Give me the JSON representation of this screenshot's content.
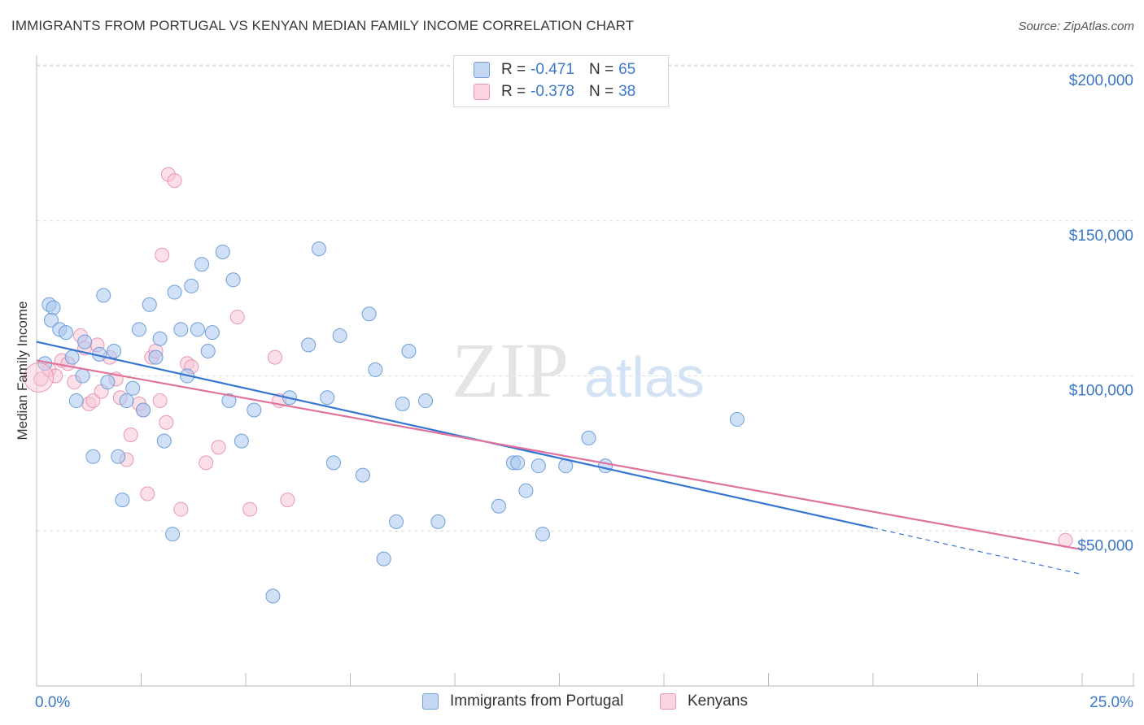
{
  "header": {
    "title": "IMMIGRANTS FROM PORTUGAL VS KENYAN MEDIAN FAMILY INCOME CORRELATION CHART",
    "source": "Source: ZipAtlas.com"
  },
  "watermark": {
    "zip": "ZIP",
    "atlas": "atlas"
  },
  "legend": {
    "rows": [
      {
        "r_label": "R =",
        "r_value": "-0.471",
        "n_label": "N =",
        "n_value": "65"
      },
      {
        "r_label": "R =",
        "r_value": "-0.378",
        "n_label": "N =",
        "n_value": "38"
      }
    ]
  },
  "bottom_legend": {
    "series1": "Immigrants from Portugal",
    "series2": "Kenyans"
  },
  "colors": {
    "series1_fill": "#aac8f0",
    "series1_stroke": "#6f9fd8",
    "series1_line": "#3676d0",
    "series2_fill": "#f8c6d6",
    "series2_stroke": "#e996b3",
    "series2_line": "#e0729c",
    "tick_label": "#3c78c8",
    "grid": "#dcdcdc"
  },
  "chart_data": {
    "type": "scatter",
    "title": "IMMIGRANTS FROM PORTUGAL VS KENYAN MEDIAN FAMILY INCOME CORRELATION CHART",
    "xlabel": "",
    "ylabel": "Median Family Income",
    "xlim": [
      0,
      25
    ],
    "ylim": [
      0,
      205000
    ],
    "x_tick_labels": [
      "0.0%",
      "25.0%"
    ],
    "y_ticks": [
      50000,
      100000,
      150000,
      200000
    ],
    "y_tick_labels": [
      "$50,000",
      "$100,000",
      "$150,000",
      "$200,000"
    ],
    "grid": true,
    "legend_position": "top-center",
    "series": [
      {
        "name": "Immigrants from Portugal",
        "points": [
          [
            0.2,
            104000
          ],
          [
            0.3,
            123000
          ],
          [
            0.4,
            122000
          ],
          [
            0.35,
            118000
          ],
          [
            0.55,
            115000
          ],
          [
            0.7,
            114000
          ],
          [
            0.85,
            106000
          ],
          [
            0.95,
            92000
          ],
          [
            1.1,
            100000
          ],
          [
            1.15,
            111000
          ],
          [
            1.35,
            74000
          ],
          [
            1.5,
            107000
          ],
          [
            1.6,
            126000
          ],
          [
            1.7,
            98000
          ],
          [
            1.85,
            108000
          ],
          [
            1.95,
            74000
          ],
          [
            2.05,
            60000
          ],
          [
            2.15,
            92000
          ],
          [
            2.3,
            96000
          ],
          [
            2.45,
            115000
          ],
          [
            2.55,
            89000
          ],
          [
            2.7,
            123000
          ],
          [
            2.85,
            106000
          ],
          [
            2.95,
            112000
          ],
          [
            3.05,
            79000
          ],
          [
            3.25,
            49000
          ],
          [
            3.3,
            127000
          ],
          [
            3.45,
            115000
          ],
          [
            3.6,
            100000
          ],
          [
            3.7,
            129000
          ],
          [
            3.85,
            115000
          ],
          [
            3.95,
            136000
          ],
          [
            4.1,
            108000
          ],
          [
            4.2,
            114000
          ],
          [
            4.45,
            140000
          ],
          [
            4.6,
            92000
          ],
          [
            4.7,
            131000
          ],
          [
            4.9,
            79000
          ],
          [
            5.2,
            89000
          ],
          [
            5.65,
            29000
          ],
          [
            6.05,
            93000
          ],
          [
            6.5,
            110000
          ],
          [
            6.75,
            141000
          ],
          [
            6.95,
            93000
          ],
          [
            7.1,
            72000
          ],
          [
            7.25,
            113000
          ],
          [
            7.8,
            68000
          ],
          [
            7.95,
            120000
          ],
          [
            8.1,
            102000
          ],
          [
            8.3,
            41000
          ],
          [
            8.6,
            53000
          ],
          [
            8.75,
            91000
          ],
          [
            8.9,
            108000
          ],
          [
            9.3,
            92000
          ],
          [
            9.6,
            53000
          ],
          [
            11.05,
            58000
          ],
          [
            11.4,
            72000
          ],
          [
            11.5,
            72000
          ],
          [
            11.7,
            63000
          ],
          [
            12.0,
            71000
          ],
          [
            12.1,
            49000
          ],
          [
            12.65,
            71000
          ],
          [
            13.2,
            80000
          ],
          [
            13.6,
            71000
          ],
          [
            16.75,
            86000
          ]
        ],
        "trend": {
          "x": [
            0,
            20
          ],
          "y": [
            111000,
            51000
          ],
          "dashed_extension": {
            "x": [
              20,
              25
            ],
            "y": [
              51000,
              36000
            ]
          }
        }
      },
      {
        "name": "Kenyans",
        "points": [
          [
            0.1,
            99000
          ],
          [
            0.3,
            102000
          ],
          [
            0.45,
            100000
          ],
          [
            0.6,
            105000
          ],
          [
            0.75,
            104000
          ],
          [
            0.9,
            98000
          ],
          [
            1.05,
            113000
          ],
          [
            1.15,
            109000
          ],
          [
            1.25,
            91000
          ],
          [
            1.35,
            92000
          ],
          [
            1.45,
            110000
          ],
          [
            1.55,
            95000
          ],
          [
            1.75,
            106000
          ],
          [
            1.9,
            99000
          ],
          [
            2.0,
            93000
          ],
          [
            2.15,
            73000
          ],
          [
            2.25,
            81000
          ],
          [
            2.45,
            91000
          ],
          [
            2.55,
            89000
          ],
          [
            2.65,
            62000
          ],
          [
            2.75,
            106000
          ],
          [
            2.85,
            108000
          ],
          [
            2.95,
            92000
          ],
          [
            3.0,
            139000
          ],
          [
            3.1,
            85000
          ],
          [
            3.15,
            165000
          ],
          [
            3.3,
            163000
          ],
          [
            3.45,
            57000
          ],
          [
            3.6,
            104000
          ],
          [
            3.7,
            103000
          ],
          [
            4.05,
            72000
          ],
          [
            4.35,
            77000
          ],
          [
            4.8,
            119000
          ],
          [
            5.1,
            57000
          ],
          [
            5.7,
            106000
          ],
          [
            5.8,
            92000
          ],
          [
            6.0,
            60000
          ],
          [
            24.6,
            47000
          ]
        ],
        "trend": {
          "x": [
            0,
            25
          ],
          "y": [
            105000,
            44000
          ]
        }
      }
    ]
  }
}
